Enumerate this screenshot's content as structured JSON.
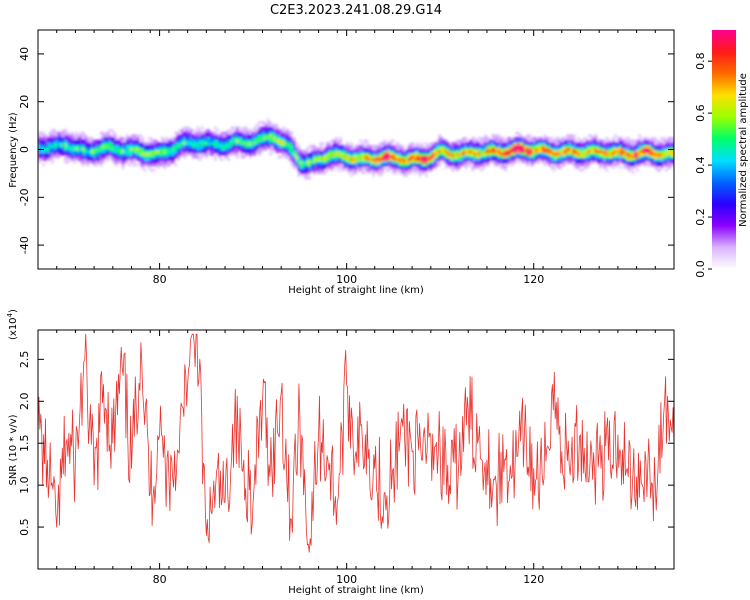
{
  "title": "C2E3.2023.241.08.29.G14",
  "colors": {
    "snr_line": "#e8332e",
    "spectrogram_palette": [
      "#ffffff",
      "#d9b3ff",
      "#8a00ff",
      "#2a00ff",
      "#0066ff",
      "#00e0ff",
      "#00ff66",
      "#9bff00",
      "#ffe000",
      "#ff6a00",
      "#ff1a1a",
      "#ff0090"
    ]
  },
  "chart_data": [
    {
      "type": "heatmap",
      "xlabel": "Height of straight line (km)",
      "ylabel": "Frequency (Hz)",
      "xlim": [
        67,
        135
      ],
      "ylim": [
        -50,
        50
      ],
      "x_ticks": [
        80,
        100,
        120
      ],
      "x_tick_labels": [
        "80",
        "100",
        "120"
      ],
      "y_ticks": [
        -40,
        -20,
        0,
        20,
        40
      ],
      "y_tick_labels": [
        "-40",
        "-20",
        "0",
        "20",
        "40"
      ],
      "colorbar": {
        "label": "Normalized spectral amplitude",
        "range": [
          0,
          0.92
        ],
        "ticks": [
          0.0,
          0.2,
          0.4,
          0.6,
          0.8
        ],
        "tick_labels": [
          "0.0",
          "0.2",
          "0.4",
          "0.6",
          "0.8"
        ]
      },
      "ridge": {
        "x": [
          68,
          70,
          72,
          74,
          76,
          78,
          80,
          82,
          84,
          86,
          88,
          90,
          92,
          94,
          95,
          96,
          98,
          100,
          102,
          104,
          106,
          108,
          110,
          112,
          114,
          116,
          118,
          120,
          122,
          124,
          126,
          128,
          130,
          132,
          134
        ],
        "freq": [
          1,
          2,
          -1,
          1,
          0,
          -1,
          -2,
          2,
          3,
          2,
          3,
          3,
          6,
          0,
          -5,
          -6,
          -2,
          -3,
          -4,
          -3,
          -4,
          -4,
          -1,
          -2,
          -1,
          -1,
          0,
          0,
          -1,
          -1,
          -1,
          -1,
          -2,
          -1,
          -2
        ],
        "amplitude": [
          0.3,
          0.35,
          0.35,
          0.35,
          0.4,
          0.4,
          0.4,
          0.35,
          0.3,
          0.3,
          0.35,
          0.35,
          0.45,
          0.4,
          0.4,
          0.4,
          0.45,
          0.5,
          0.55,
          0.8,
          0.6,
          0.8,
          0.55,
          0.6,
          0.6,
          0.55,
          0.9,
          0.65,
          0.6,
          0.6,
          0.6,
          0.6,
          0.65,
          0.8,
          0.55
        ]
      }
    },
    {
      "type": "line",
      "xlabel": "Height of straight line (km)",
      "ylabel": "SNR (10 * v/v)",
      "ylabel_multiplier": "(x10^4)",
      "xlim": [
        67,
        135
      ],
      "ylim": [
        0,
        2.85
      ],
      "x_ticks": [
        80,
        100,
        120
      ],
      "x_tick_labels": [
        "80",
        "100",
        "120"
      ],
      "y_ticks": [
        0.5,
        1.0,
        1.5,
        2.0,
        2.5
      ],
      "y_tick_labels": [
        "0.5",
        "1.0",
        "1.5",
        "2.0",
        "2.5"
      ],
      "series": [
        {
          "x": [
            67,
            68,
            69,
            70,
            71,
            72,
            73,
            74,
            75,
            76,
            77,
            78,
            79,
            80,
            81,
            82,
            83,
            84,
            85,
            86,
            87,
            88,
            89,
            90,
            91,
            92,
            93,
            94,
            95,
            96,
            97,
            98,
            99,
            100,
            101,
            102,
            103,
            104,
            105,
            106,
            107,
            108,
            109,
            110,
            111,
            112,
            113,
            114,
            115,
            116,
            117,
            118,
            119,
            120,
            121,
            122,
            123,
            124,
            125,
            126,
            127,
            128,
            129,
            130,
            131,
            132,
            133,
            134,
            135
          ],
          "y": [
            1.6,
            1.3,
            0.5,
            1.5,
            1.3,
            2.5,
            1.0,
            2.2,
            1.5,
            2.4,
            1.2,
            2.7,
            0.9,
            1.6,
            1.1,
            1.4,
            2.2,
            2.8,
            0.4,
            1.0,
            0.8,
            1.7,
            1.3,
            0.8,
            2.0,
            1.2,
            2.1,
            0.6,
            1.8,
            0.2,
            1.6,
            1.3,
            0.8,
            2.2,
            1.4,
            1.6,
            1.2,
            0.9,
            1.2,
            1.7,
            1.4,
            1.3,
            1.6,
            1.4,
            1.0,
            1.3,
            1.9,
            1.5,
            1.3,
            1.0,
            1.3,
            1.2,
            1.6,
            1.2,
            1.0,
            2.2,
            1.4,
            1.3,
            1.6,
            1.2,
            1.4,
            1.3,
            1.6,
            1.2,
            1.1,
            1.3,
            1.0,
            2.0,
            1.5
          ]
        }
      ]
    }
  ]
}
